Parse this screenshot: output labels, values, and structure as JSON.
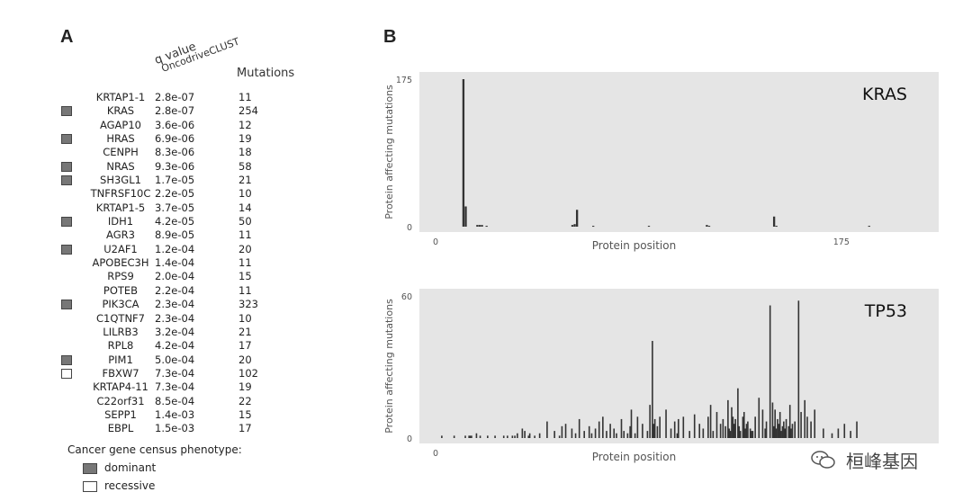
{
  "panel_a": {
    "letter": "A",
    "header_q": "q value",
    "header_tool": "OncodriveCLUST",
    "header_mutations": "Mutations",
    "rows": [
      {
        "gene": "KRTAP1-1",
        "q": "2.8e-07",
        "mutations": "11",
        "phenotype": "none"
      },
      {
        "gene": "KRAS",
        "q": "2.8e-07",
        "mutations": "254",
        "phenotype": "dominant"
      },
      {
        "gene": "AGAP10",
        "q": "3.6e-06",
        "mutations": "12",
        "phenotype": "none"
      },
      {
        "gene": "HRAS",
        "q": "6.9e-06",
        "mutations": "19",
        "phenotype": "dominant"
      },
      {
        "gene": "CENPH",
        "q": "8.3e-06",
        "mutations": "18",
        "phenotype": "none"
      },
      {
        "gene": "NRAS",
        "q": "9.3e-06",
        "mutations": "58",
        "phenotype": "dominant"
      },
      {
        "gene": "SH3GL1",
        "q": "1.7e-05",
        "mutations": "21",
        "phenotype": "dominant"
      },
      {
        "gene": "TNFRSF10C",
        "q": "2.2e-05",
        "mutations": "10",
        "phenotype": "none"
      },
      {
        "gene": "KRTAP1-5",
        "q": "3.7e-05",
        "mutations": "14",
        "phenotype": "none"
      },
      {
        "gene": "IDH1",
        "q": "4.2e-05",
        "mutations": "50",
        "phenotype": "dominant"
      },
      {
        "gene": "AGR3",
        "q": "8.9e-05",
        "mutations": "11",
        "phenotype": "none"
      },
      {
        "gene": "U2AF1",
        "q": "1.2e-04",
        "mutations": "20",
        "phenotype": "dominant"
      },
      {
        "gene": "APOBEC3H",
        "q": "1.4e-04",
        "mutations": "11",
        "phenotype": "none"
      },
      {
        "gene": "RPS9",
        "q": "2.0e-04",
        "mutations": "15",
        "phenotype": "none"
      },
      {
        "gene": "POTEB",
        "q": "2.2e-04",
        "mutations": "11",
        "phenotype": "none"
      },
      {
        "gene": "PIK3CA",
        "q": "2.3e-04",
        "mutations": "323",
        "phenotype": "dominant"
      },
      {
        "gene": "C1QTNF7",
        "q": "2.3e-04",
        "mutations": "10",
        "phenotype": "none"
      },
      {
        "gene": "LILRB3",
        "q": "3.2e-04",
        "mutations": "21",
        "phenotype": "none"
      },
      {
        "gene": "RPL8",
        "q": "4.2e-04",
        "mutations": "17",
        "phenotype": "none"
      },
      {
        "gene": "PIM1",
        "q": "5.0e-04",
        "mutations": "20",
        "phenotype": "dominant"
      },
      {
        "gene": "FBXW7",
        "q": "7.3e-04",
        "mutations": "102",
        "phenotype": "recessive"
      },
      {
        "gene": "KRTAP4-11",
        "q": "7.3e-04",
        "mutations": "19",
        "phenotype": "none"
      },
      {
        "gene": "C22orf31",
        "q": "8.5e-04",
        "mutations": "22",
        "phenotype": "none"
      },
      {
        "gene": "SEPP1",
        "q": "1.4e-03",
        "mutations": "15",
        "phenotype": "none"
      },
      {
        "gene": "EBPL",
        "q": "1.5e-03",
        "mutations": "17",
        "phenotype": "none"
      }
    ],
    "legend": {
      "title": "Cancer gene census phenotype:",
      "dominant": "dominant",
      "recessive": "recessive"
    }
  },
  "panel_b": {
    "letter": "B"
  },
  "watermark": "桓峰基因",
  "colors": {
    "plot_bg": "#e5e5e5",
    "bar": "#333333",
    "dominant": "#777777",
    "recessive": "#ffffff"
  },
  "chart_data": [
    {
      "type": "bar",
      "title": "KRAS",
      "xlabel": "Protein position",
      "ylabel": "Protein affecting mutations",
      "xlim": [
        0,
        210
      ],
      "ylim": [
        0,
        175
      ],
      "xticks": [
        0,
        175
      ],
      "yticks": [
        0,
        175
      ],
      "x": [
        12,
        13,
        18,
        19,
        20,
        22,
        59,
        60,
        61,
        68,
        92,
        117,
        118,
        146,
        147,
        187
      ],
      "values": [
        175,
        24,
        2,
        2,
        2,
        1,
        2,
        3,
        20,
        1,
        1,
        2,
        1,
        12,
        1,
        1
      ]
    },
    {
      "type": "bar",
      "title": "TP53",
      "xlabel": "Protein position",
      "ylabel": "Protein affecting mutations",
      "xlim": [
        0,
        393
      ],
      "ylim": [
        0,
        60
      ],
      "xticks": [
        0
      ],
      "yticks": [
        0,
        60
      ],
      "x": [
        5,
        15,
        24,
        27,
        28,
        29,
        33,
        36,
        42,
        48,
        55,
        58,
        62,
        64,
        66,
        70,
        72,
        75,
        76,
        80,
        84,
        90,
        96,
        100,
        102,
        105,
        110,
        113,
        116,
        120,
        124,
        126,
        129,
        132,
        135,
        138,
        141,
        144,
        146,
        150,
        152,
        155,
        157,
        158,
        161,
        163,
        167,
        171,
        173,
        175,
        176,
        177,
        179,
        181,
        186,
        190,
        193,
        195,
        196,
        200,
        205,
        209,
        213,
        216,
        220,
        222,
        224,
        227,
        230,
        232,
        234,
        236,
        237,
        238,
        239,
        240,
        241,
        242,
        244,
        245,
        246,
        248,
        249,
        250,
        251,
        252,
        254,
        255,
        256,
        258,
        261,
        264,
        266,
        267,
        270,
        272,
        273,
        274,
        275,
        276,
        277,
        278,
        279,
        280,
        281,
        282,
        283,
        285,
        286,
        287,
        288,
        290,
        293,
        295,
        298,
        300,
        303,
        306,
        313,
        320,
        325,
        330,
        335,
        340
      ],
      "values": [
        1,
        1,
        1,
        1,
        1,
        1,
        2,
        1,
        1,
        1,
        1,
        1,
        1,
        1,
        2,
        4,
        3,
        1,
        2,
        1,
        2,
        7,
        3,
        1,
        5,
        6,
        4,
        2,
        8,
        3,
        5,
        2,
        4,
        7,
        9,
        3,
        6,
        4,
        2,
        8,
        3,
        2,
        5,
        12,
        2,
        9,
        6,
        3,
        14,
        41,
        6,
        8,
        5,
        9,
        12,
        4,
        7,
        2,
        8,
        9,
        3,
        10,
        6,
        4,
        9,
        14,
        3,
        11,
        6,
        8,
        5,
        16,
        4,
        3,
        13,
        9,
        6,
        8,
        21,
        5,
        3,
        9,
        11,
        4,
        6,
        7,
        4,
        3,
        3,
        9,
        17,
        12,
        4,
        7,
        56,
        15,
        5,
        12,
        4,
        8,
        6,
        11,
        3,
        5,
        7,
        4,
        8,
        5,
        14,
        4,
        6,
        7,
        58,
        11,
        16,
        9,
        7,
        12,
        4,
        2,
        4,
        6,
        3,
        7
      ]
    }
  ]
}
